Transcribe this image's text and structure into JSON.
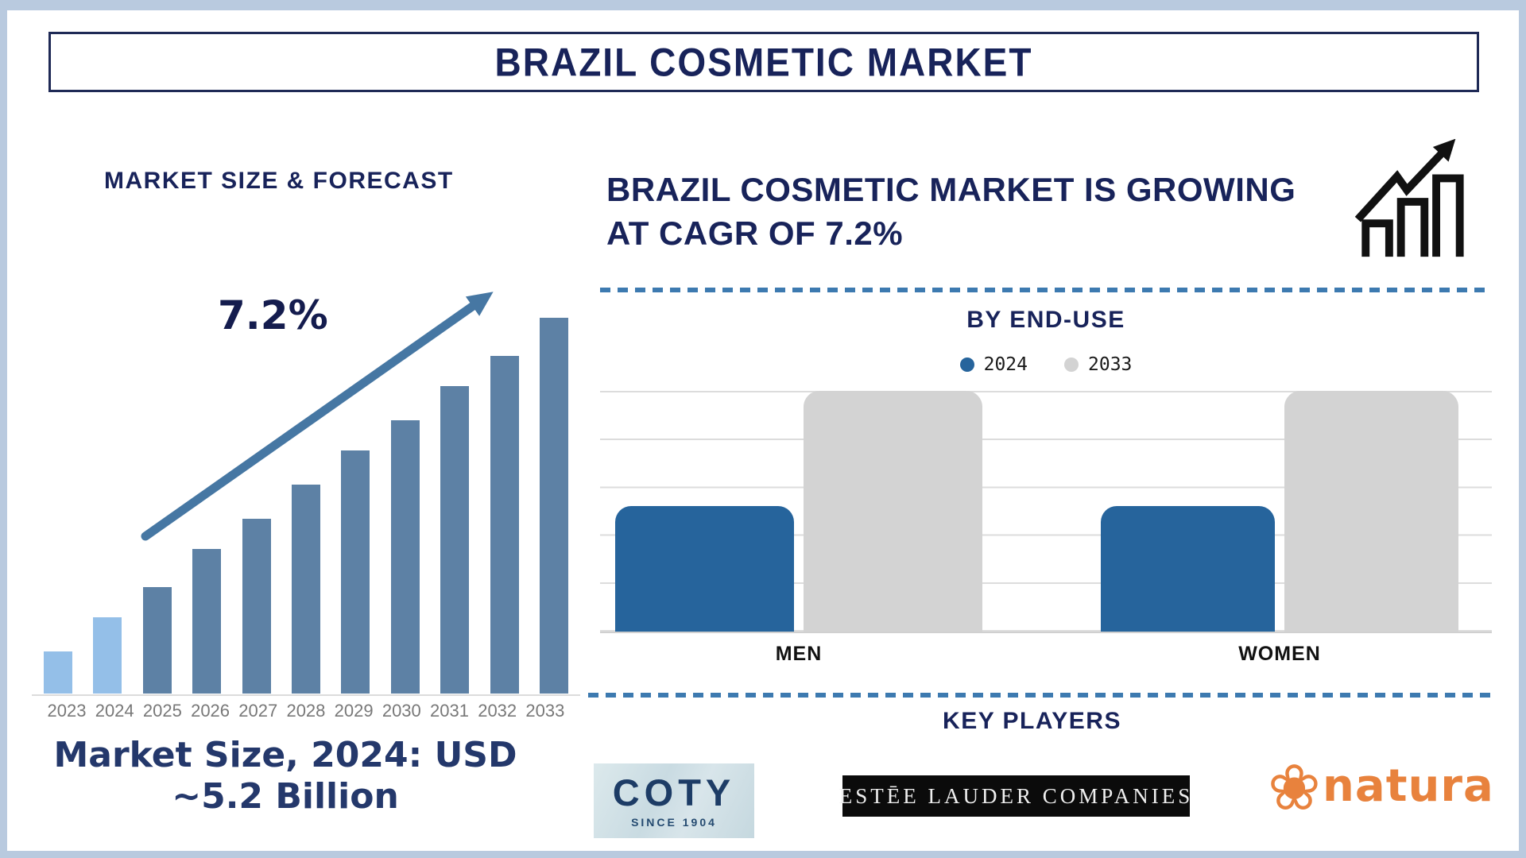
{
  "page": {
    "title": "BRAZIL COSMETIC MARKET"
  },
  "left_panel": {
    "section_title": "MARKET SIZE & FORECAST",
    "cagr_annotation": "7.2%",
    "market_size_line1": "Market Size, 2024: USD",
    "market_size_line2": "~5.2 Billion"
  },
  "right_panel": {
    "headline_line1": "BRAZIL COSMETIC MARKET IS GROWING",
    "headline_line2": "AT CAGR OF 7.2%"
  },
  "end_use": {
    "title": "BY END-USE"
  },
  "key_players": {
    "title": "KEY PLAYERS",
    "coty": {
      "name": "COTY",
      "tagline": "SINCE 1904"
    },
    "estee_lauder": {
      "name": "ESTĒE LAUDER COMPANIES"
    },
    "natura": {
      "name": "natura"
    }
  },
  "icons": {
    "natura_flower_glyph": "❀",
    "growth_chart_icon": "three ascending outlined bars with zigzag up-right arrow"
  },
  "chart_data": [
    {
      "type": "bar",
      "title": "MARKET SIZE & FORECAST",
      "categories": [
        "2023",
        "2024",
        "2025",
        "2026",
        "2027",
        "2028",
        "2029",
        "2030",
        "2031",
        "2032",
        "2033"
      ],
      "values_relative_pct": [
        11,
        20,
        28,
        38,
        46,
        55,
        64,
        72,
        81,
        89,
        99
      ],
      "known_value": {
        "year": "2024",
        "value": "USD ~5.2 Billion"
      },
      "annotation": "7.2%",
      "colors": {
        "historical": "#94bfe8",
        "forecast": "#5d81a5"
      },
      "value_axis": "none (illustrative heights, no tick labels)",
      "xlabel": "",
      "ylabel": ""
    },
    {
      "type": "bar",
      "title": "BY END-USE",
      "categories": [
        "MEN",
        "WOMEN"
      ],
      "series": [
        {
          "name": "2024",
          "color": "#26649c",
          "values_relative_pct": [
            52,
            52
          ]
        },
        {
          "name": "2033",
          "color": "#d3d3d3",
          "values_relative_pct": [
            100,
            100
          ]
        }
      ],
      "legend_position": "top",
      "gridlines": true,
      "value_axis": "none (relative heights, no tick labels)"
    }
  ],
  "colors": {
    "heading_navy": "#18235a",
    "market_size_navy": "#24386b",
    "divider_blue": "#3d7ab0",
    "arrow_blue": "#4677a3",
    "year_label_gray": "#787878",
    "page_border_blue": "#b9cadf",
    "natura_orange": "#e8823d",
    "coty_navy": "#1d3c66",
    "estee_bg": "#0b0b0b"
  }
}
